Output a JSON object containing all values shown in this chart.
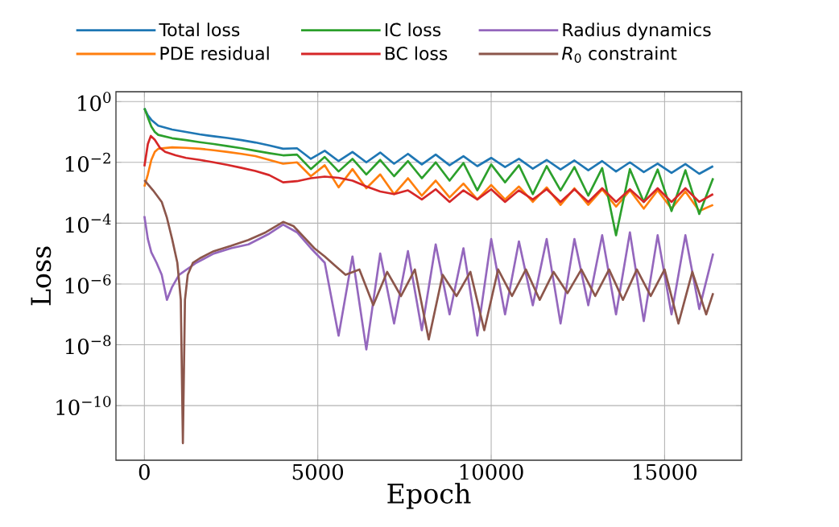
{
  "chart_data": {
    "type": "line",
    "xlabel": "Epoch",
    "ylabel": "Loss",
    "log": true,
    "grid": true,
    "legend": "top",
    "xlim": [
      -820,
      17220
    ],
    "xticks": [
      0,
      5000,
      10000,
      15000
    ],
    "ylim": [
      1.6e-12,
      2.1
    ],
    "yticks": [
      {
        "value": 1,
        "label": "10$^{0}$"
      },
      {
        "value": 0.01,
        "label": "10$^{−2}$"
      },
      {
        "value": 0.0001,
        "label": "10$^{−4}$"
      },
      {
        "value": 1e-06,
        "label": "10$^{−6}$"
      },
      {
        "value": 1e-08,
        "label": "10$^{−8}$"
      },
      {
        "value": 1e-10,
        "label": "10$^{−10}$"
      }
    ],
    "series": [
      {
        "name": "Total loss",
        "color": "#1f77b4",
        "x": [
          0,
          100,
          200,
          400,
          800,
          1200,
          1600,
          2000,
          2400,
          2800,
          3200,
          3600,
          4000,
          4400,
          4800,
          5200,
          5600,
          6000,
          6400,
          6800,
          7200,
          7600,
          8000,
          8400,
          8800,
          9200,
          9600,
          10000,
          10400,
          10800,
          11200,
          11600,
          12000,
          12400,
          12800,
          13200,
          13600,
          14000,
          14400,
          14800,
          15200,
          15600,
          16000,
          16400
        ],
        "values": [
          0.6,
          0.35,
          0.25,
          0.16,
          0.12,
          0.1,
          0.083,
          0.072,
          0.063,
          0.054,
          0.045,
          0.036,
          0.028,
          0.029,
          0.013,
          0.024,
          0.011,
          0.022,
          0.01,
          0.021,
          0.009,
          0.019,
          0.0085,
          0.018,
          0.008,
          0.016,
          0.0075,
          0.014,
          0.007,
          0.013,
          0.0062,
          0.012,
          0.0058,
          0.0115,
          0.0055,
          0.011,
          0.005,
          0.01,
          0.0048,
          0.0091,
          0.0045,
          0.0088,
          0.0042,
          0.0075
        ]
      },
      {
        "name": "PDE residual",
        "color": "#ff7f0e",
        "x": [
          0,
          100,
          200,
          300,
          400,
          800,
          1200,
          1600,
          2000,
          2400,
          2800,
          3200,
          3600,
          4000,
          4400,
          4800,
          5200,
          5600,
          6000,
          6400,
          6800,
          7200,
          7600,
          8000,
          8400,
          8800,
          9200,
          9600,
          10000,
          10400,
          10800,
          11200,
          11600,
          12000,
          12400,
          12800,
          13200,
          13600,
          14000,
          14400,
          14800,
          15200,
          15600,
          16000,
          16400
        ],
        "values": [
          0.0016,
          0.004,
          0.012,
          0.022,
          0.028,
          0.031,
          0.03,
          0.028,
          0.025,
          0.022,
          0.019,
          0.016,
          0.012,
          0.009,
          0.01,
          0.0035,
          0.008,
          0.0015,
          0.006,
          0.0014,
          0.004,
          0.0009,
          0.003,
          0.0008,
          0.0025,
          0.0007,
          0.002,
          0.0006,
          0.0018,
          0.0006,
          0.0016,
          0.0005,
          0.0015,
          0.0004,
          0.0014,
          0.0004,
          0.0013,
          0.00035,
          0.0012,
          0.0003,
          0.0012,
          0.0003,
          0.0011,
          0.00025,
          0.0004
        ]
      },
      {
        "name": "IC loss",
        "color": "#2ca02c",
        "x": [
          0,
          100,
          200,
          300,
          400,
          800,
          1200,
          1600,
          2000,
          2400,
          2800,
          3200,
          3600,
          4000,
          4400,
          4800,
          5200,
          5600,
          6000,
          6400,
          6800,
          7200,
          7600,
          8000,
          8400,
          8800,
          9200,
          9600,
          10000,
          10400,
          10800,
          11200,
          11600,
          12000,
          12400,
          12800,
          13200,
          13600,
          14000,
          14400,
          14800,
          15200,
          15600,
          16000,
          16400
        ],
        "values": [
          0.6,
          0.3,
          0.15,
          0.1,
          0.08,
          0.062,
          0.054,
          0.046,
          0.04,
          0.034,
          0.029,
          0.024,
          0.02,
          0.017,
          0.018,
          0.006,
          0.015,
          0.005,
          0.013,
          0.004,
          0.012,
          0.0035,
          0.011,
          0.003,
          0.01,
          0.0025,
          0.0095,
          0.0012,
          0.0085,
          0.0022,
          0.008,
          0.0009,
          0.0075,
          0.0012,
          0.007,
          0.0008,
          0.0065,
          4e-05,
          0.006,
          0.0005,
          0.0058,
          0.00025,
          0.0055,
          0.0002,
          0.003
        ]
      },
      {
        "name": "BC loss",
        "color": "#d62728",
        "x": [
          0,
          100,
          185,
          300,
          450,
          600,
          900,
          1200,
          1600,
          2000,
          2400,
          2800,
          3200,
          3600,
          4000,
          4400,
          4800,
          5200,
          5600,
          6000,
          6400,
          6800,
          7200,
          7600,
          8000,
          8400,
          8800,
          9200,
          9600,
          10000,
          10400,
          10800,
          11200,
          11600,
          12000,
          12400,
          12800,
          13200,
          13600,
          14000,
          14400,
          14800,
          15200,
          15600,
          16000,
          16400
        ],
        "values": [
          0.0074,
          0.04,
          0.074,
          0.055,
          0.03,
          0.022,
          0.017,
          0.014,
          0.012,
          0.01,
          0.0082,
          0.0066,
          0.0052,
          0.0038,
          0.0022,
          0.0024,
          0.003,
          0.0034,
          0.0031,
          0.0025,
          0.0016,
          0.0011,
          0.0009,
          0.0012,
          0.0006,
          0.0013,
          0.0005,
          0.0012,
          0.0006,
          0.0013,
          0.0005,
          0.0012,
          0.0006,
          0.0013,
          0.0005,
          0.0013,
          0.0005,
          0.0014,
          0.0005,
          0.0013,
          0.0005,
          0.0014,
          0.0005,
          0.0014,
          0.0005,
          0.0009
        ]
      },
      {
        "name": "Radius dynamics",
        "color": "#9467bd",
        "x": [
          0,
          100,
          200,
          350,
          500,
          650,
          800,
          1000,
          1500,
          2000,
          2500,
          3000,
          3600,
          4000,
          4400,
          4800,
          5200,
          5600,
          6000,
          6400,
          6800,
          7200,
          7600,
          8000,
          8400,
          8800,
          9200,
          9600,
          10000,
          10400,
          10800,
          11200,
          11600,
          12000,
          12400,
          12800,
          13200,
          13600,
          14000,
          14400,
          14800,
          15200,
          15600,
          16000,
          16400
        ],
        "values": [
          0.00017,
          3e-05,
          1.1e-05,
          5e-06,
          2e-06,
          3e-07,
          8e-07,
          2e-06,
          5e-06,
          1e-05,
          1.5e-05,
          2e-05,
          4.5e-05,
          9e-05,
          5e-05,
          1.5e-05,
          5e-06,
          2e-08,
          8e-06,
          7e-09,
          1e-05,
          5e-08,
          1.2e-05,
          3e-08,
          2e-05,
          1e-07,
          1.5e-05,
          2e-08,
          3e-05,
          1e-07,
          2.5e-05,
          2e-07,
          3e-05,
          5e-08,
          3e-05,
          2e-07,
          4e-05,
          1e-07,
          5e-05,
          6e-08,
          4e-05,
          1e-07,
          4e-05,
          1.5e-07,
          1e-05
        ]
      },
      {
        "name": "*R*$_{0}$ constraint",
        "color": "#8c564b",
        "x": [
          0,
          250,
          500,
          650,
          800,
          950,
          1050,
          1110,
          1170,
          1250,
          1400,
          1600,
          2000,
          2500,
          3000,
          3500,
          4000,
          4300,
          4600,
          4900,
          5200,
          5500,
          5800,
          6200,
          6600,
          7000,
          7400,
          7800,
          8200,
          8600,
          9000,
          9400,
          9800,
          10200,
          10600,
          11000,
          11400,
          11800,
          12200,
          12600,
          13000,
          13400,
          13800,
          14200,
          14600,
          15000,
          15400,
          15800,
          16200,
          16400
        ],
        "values": [
          0.0026,
          0.0012,
          0.0005,
          0.00015,
          3e-05,
          5e-06,
          3e-07,
          5.8e-12,
          3e-07,
          2e-06,
          5e-06,
          7e-06,
          1.2e-05,
          1.8e-05,
          2.8e-05,
          5e-05,
          0.00011,
          8e-05,
          3.5e-05,
          1.5e-05,
          8e-06,
          4e-06,
          2e-06,
          3e-06,
          2e-07,
          2.5e-06,
          4e-07,
          3e-06,
          1.5e-08,
          2e-06,
          4e-07,
          2.5e-06,
          3e-08,
          3e-06,
          4e-07,
          3e-06,
          3e-07,
          2.5e-06,
          5e-07,
          3e-06,
          4e-07,
          3e-06,
          3e-07,
          3e-06,
          4e-07,
          3e-06,
          5e-08,
          2.5e-06,
          1e-07,
          5e-07
        ]
      }
    ]
  }
}
